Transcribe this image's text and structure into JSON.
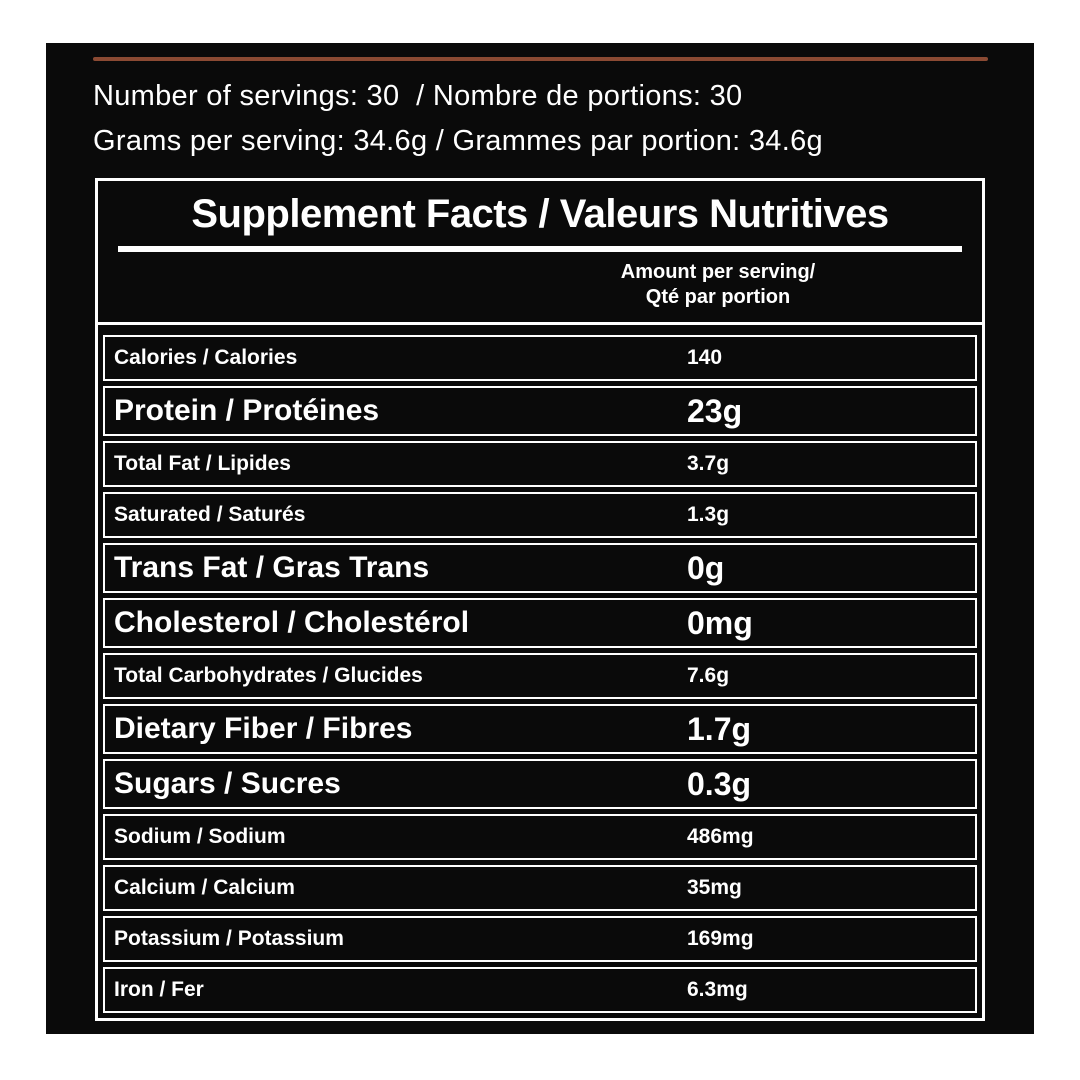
{
  "page": {
    "background": "#ffffff",
    "panel_color": "#0a0a0a",
    "accent_line_color": "#8b4a33",
    "text_color": "#ffffff"
  },
  "serving_info": {
    "line1": "Number of servings: 30  / Nombre de portions: 30",
    "line2": "Grams per serving: 34.6g / Grammes par portion: 34.6g"
  },
  "facts_table": {
    "title": "Supplement Facts / Valeurs Nutritives",
    "amount_header": {
      "line1": "Amount per serving/",
      "line2": "Qté par portion"
    },
    "rows": [
      {
        "label": "Calories / Calories",
        "value": "140",
        "emphasis": "small"
      },
      {
        "label": "Protein / Protéines",
        "value": "23g",
        "emphasis": "large"
      },
      {
        "label": "Total Fat / Lipides",
        "value": "3.7g",
        "emphasis": "small"
      },
      {
        "label": "Saturated / Saturés",
        "value": "1.3g",
        "emphasis": "small"
      },
      {
        "label": "Trans Fat / Gras Trans",
        "value": "0g",
        "emphasis": "large"
      },
      {
        "label": "Cholesterol / Cholestérol",
        "value": "0mg",
        "emphasis": "large"
      },
      {
        "label": "Total Carbohydrates / Glucides",
        "value": "7.6g",
        "emphasis": "small"
      },
      {
        "label": "Dietary Fiber / Fibres",
        "value": "1.7g",
        "emphasis": "large"
      },
      {
        "label": "Sugars / Sucres",
        "value": "0.3g",
        "emphasis": "large"
      },
      {
        "label": "Sodium / Sodium",
        "value": "486mg",
        "emphasis": "small"
      },
      {
        "label": "Calcium / Calcium",
        "value": "35mg",
        "emphasis": "small"
      },
      {
        "label": "Potassium / Potassium",
        "value": "169mg",
        "emphasis": "small"
      },
      {
        "label": "Iron / Fer",
        "value": "6.3mg",
        "emphasis": "small"
      }
    ]
  }
}
